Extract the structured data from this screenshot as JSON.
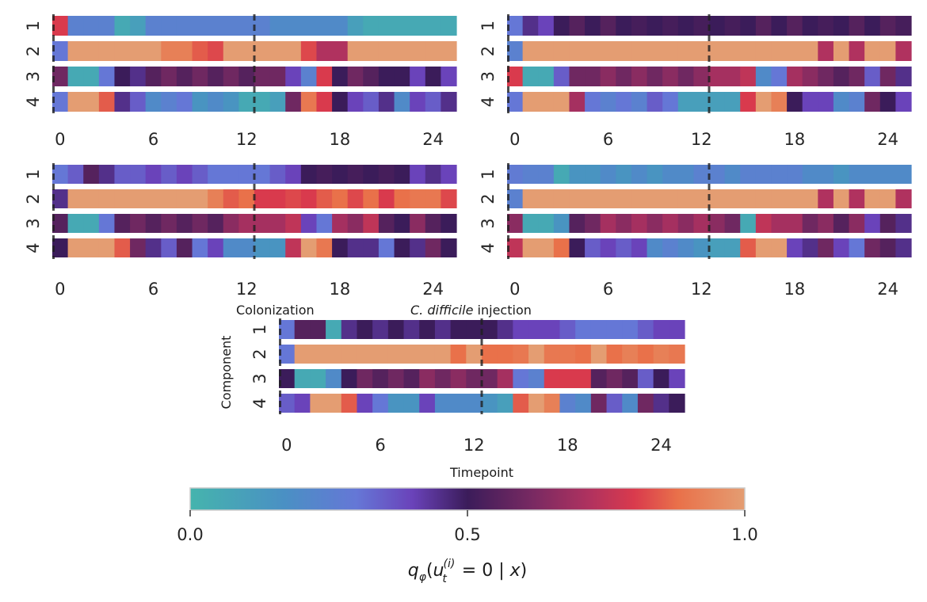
{
  "chart_data": {
    "type": "heatmap",
    "shared": {
      "x_ticks": [
        "0",
        "6",
        "12",
        "18",
        "24"
      ],
      "x_tick_values": [
        0,
        6,
        12,
        18,
        24
      ],
      "xlim": [
        -0.5,
        25.5
      ],
      "event_lines_x": [
        -0.5,
        12.5
      ],
      "rows": [
        "1",
        "2",
        "3",
        "4"
      ],
      "n_timepoints": 26
    },
    "colorbar": {
      "ticks": [
        "0.0",
        "0.5",
        "1.0"
      ],
      "tick_values": [
        0.0,
        0.5,
        1.0
      ],
      "range": [
        0,
        1
      ],
      "label_prefix": "q",
      "label_sub": "φ",
      "label_u": "u",
      "label_u_sub": "t",
      "label_u_sup": "(i)",
      "label_rest": " = 0 | ",
      "label_x": "x",
      "label_close": ")",
      "label_open": "(",
      "stops": [
        {
          "v": 0.0,
          "c": "#45b4ad"
        },
        {
          "v": 0.17,
          "c": "#4a90c4"
        },
        {
          "v": 0.3,
          "c": "#6577d6"
        },
        {
          "v": 0.4,
          "c": "#6a43ba"
        },
        {
          "v": 0.5,
          "c": "#3b1c5a"
        },
        {
          "v": 0.62,
          "c": "#7a2a62"
        },
        {
          "v": 0.72,
          "c": "#b0325f"
        },
        {
          "v": 0.8,
          "c": "#d93a4d"
        },
        {
          "v": 0.88,
          "c": "#e9714a"
        },
        {
          "v": 1.0,
          "c": "#e49d72"
        }
      ]
    },
    "annotations": {
      "left": "Colonization",
      "right_italic": "C.  difficile",
      "right_plain": " injection",
      "ylabel": "Component",
      "xlabel": "Timepoint"
    },
    "panels": [
      {
        "id": "panel-1",
        "values": [
          [
            0.8,
            0.25,
            0.25,
            0.25,
            0.05,
            0.1,
            0.25,
            0.25,
            0.25,
            0.25,
            0.25,
            0.25,
            0.25,
            0.25,
            0.2,
            0.2,
            0.2,
            0.2,
            0.2,
            0.1,
            0.05,
            0.05,
            0.05,
            0.05,
            0.05,
            0.05
          ],
          [
            0.3,
            1.0,
            1.0,
            1.0,
            1.0,
            1.0,
            1.0,
            0.92,
            0.92,
            0.85,
            0.82,
            1.0,
            1.0,
            1.0,
            1.0,
            1.0,
            0.82,
            0.72,
            0.72,
            1.0,
            1.0,
            1.0,
            1.0,
            1.0,
            1.0,
            1.0
          ],
          [
            0.6,
            0.05,
            0.05,
            0.3,
            0.5,
            0.45,
            0.55,
            0.6,
            0.55,
            0.6,
            0.55,
            0.6,
            0.55,
            0.6,
            0.6,
            0.4,
            0.25,
            0.8,
            0.5,
            0.6,
            0.55,
            0.5,
            0.5,
            0.4,
            0.5,
            0.4
          ],
          [
            0.3,
            1.0,
            1.0,
            0.85,
            0.45,
            0.35,
            0.2,
            0.25,
            0.3,
            0.15,
            0.2,
            0.15,
            0.05,
            0.05,
            0.1,
            0.6,
            0.9,
            0.8,
            0.5,
            0.4,
            0.35,
            0.45,
            0.2,
            0.4,
            0.35,
            0.45
          ]
        ]
      },
      {
        "id": "panel-2",
        "values": [
          [
            0.3,
            0.45,
            0.4,
            0.5,
            0.55,
            0.5,
            0.55,
            0.5,
            0.52,
            0.5,
            0.52,
            0.5,
            0.52,
            0.5,
            0.52,
            0.5,
            0.55,
            0.5,
            0.55,
            0.5,
            0.52,
            0.5,
            0.55,
            0.5,
            0.55,
            0.52
          ],
          [
            0.25,
            1.0,
            1.0,
            1.0,
            1.0,
            1.0,
            1.0,
            1.0,
            1.0,
            1.0,
            1.0,
            1.0,
            1.0,
            1.0,
            1.0,
            1.0,
            1.0,
            1.0,
            1.0,
            1.0,
            0.72,
            1.0,
            0.72,
            1.0,
            1.0,
            0.72
          ],
          [
            0.8,
            0.05,
            0.05,
            0.35,
            0.6,
            0.6,
            0.65,
            0.6,
            0.65,
            0.6,
            0.65,
            0.6,
            0.65,
            0.7,
            0.7,
            0.75,
            0.2,
            0.3,
            0.7,
            0.65,
            0.6,
            0.55,
            0.6,
            0.35,
            0.6,
            0.45
          ],
          [
            0.3,
            1.0,
            1.0,
            1.0,
            0.7,
            0.3,
            0.25,
            0.3,
            0.25,
            0.35,
            0.3,
            0.1,
            0.1,
            0.1,
            0.1,
            0.8,
            1.0,
            0.92,
            0.5,
            0.4,
            0.4,
            0.2,
            0.25,
            0.6,
            0.5,
            0.4
          ]
        ]
      },
      {
        "id": "panel-3",
        "values": [
          [
            0.3,
            0.35,
            0.55,
            0.45,
            0.35,
            0.35,
            0.4,
            0.35,
            0.4,
            0.35,
            0.3,
            0.3,
            0.3,
            0.3,
            0.35,
            0.4,
            0.5,
            0.52,
            0.5,
            0.52,
            0.5,
            0.52,
            0.5,
            0.4,
            0.45,
            0.4
          ],
          [
            0.45,
            1.0,
            1.0,
            1.0,
            1.0,
            1.0,
            1.0,
            1.0,
            1.0,
            1.0,
            0.92,
            0.85,
            0.88,
            0.8,
            0.8,
            0.82,
            0.8,
            0.85,
            0.88,
            0.82,
            0.88,
            0.8,
            0.88,
            0.9,
            0.9,
            0.82
          ],
          [
            0.55,
            0.05,
            0.05,
            0.3,
            0.55,
            0.6,
            0.55,
            0.6,
            0.55,
            0.6,
            0.55,
            0.65,
            0.7,
            0.7,
            0.7,
            0.75,
            0.4,
            0.3,
            0.7,
            0.65,
            0.75,
            0.55,
            0.5,
            0.65,
            0.55,
            0.5
          ],
          [
            0.5,
            1.0,
            1.0,
            1.0,
            0.85,
            0.6,
            0.45,
            0.35,
            0.55,
            0.3,
            0.4,
            0.2,
            0.2,
            0.15,
            0.15,
            0.75,
            1.0,
            0.9,
            0.5,
            0.45,
            0.45,
            0.3,
            0.5,
            0.45,
            0.6,
            0.5
          ]
        ]
      },
      {
        "id": "panel-4",
        "values": [
          [
            0.28,
            0.25,
            0.25,
            0.05,
            0.15,
            0.15,
            0.2,
            0.15,
            0.2,
            0.15,
            0.2,
            0.2,
            0.25,
            0.25,
            0.2,
            0.25,
            0.25,
            0.25,
            0.25,
            0.2,
            0.2,
            0.15,
            0.2,
            0.2,
            0.2,
            0.2
          ],
          [
            0.25,
            1.0,
            1.0,
            1.0,
            1.0,
            1.0,
            1.0,
            1.0,
            1.0,
            1.0,
            1.0,
            1.0,
            1.0,
            1.0,
            1.0,
            1.0,
            1.0,
            1.0,
            1.0,
            1.0,
            0.72,
            1.0,
            0.72,
            1.0,
            1.0,
            0.72
          ],
          [
            0.65,
            0.05,
            0.05,
            0.15,
            0.55,
            0.6,
            0.7,
            0.65,
            0.7,
            0.65,
            0.7,
            0.65,
            0.7,
            0.65,
            0.6,
            0.05,
            0.75,
            0.7,
            0.7,
            0.6,
            0.65,
            0.55,
            0.65,
            0.4,
            0.55,
            0.45
          ],
          [
            0.75,
            1.0,
            1.0,
            0.88,
            0.5,
            0.35,
            0.4,
            0.35,
            0.4,
            0.2,
            0.25,
            0.2,
            0.15,
            0.1,
            0.1,
            0.85,
            1.0,
            1.0,
            0.4,
            0.45,
            0.6,
            0.4,
            0.3,
            0.6,
            0.55,
            0.45
          ]
        ]
      },
      {
        "id": "panel-5",
        "values": [
          [
            0.3,
            0.55,
            0.55,
            0.05,
            0.45,
            0.5,
            0.45,
            0.5,
            0.45,
            0.5,
            0.45,
            0.5,
            0.5,
            0.5,
            0.45,
            0.4,
            0.4,
            0.4,
            0.35,
            0.3,
            0.3,
            0.3,
            0.3,
            0.35,
            0.4,
            0.4
          ],
          [
            0.3,
            1.0,
            1.0,
            1.0,
            1.0,
            1.0,
            1.0,
            1.0,
            1.0,
            1.0,
            1.0,
            0.88,
            1.0,
            0.88,
            0.88,
            0.9,
            1.0,
            0.9,
            0.9,
            0.88,
            1.0,
            0.88,
            0.92,
            0.88,
            0.92,
            0.9
          ],
          [
            0.5,
            0.05,
            0.05,
            0.2,
            0.5,
            0.6,
            0.55,
            0.6,
            0.55,
            0.65,
            0.6,
            0.65,
            0.6,
            0.6,
            0.7,
            0.3,
            0.25,
            0.8,
            0.8,
            0.8,
            0.55,
            0.6,
            0.55,
            0.35,
            0.5,
            0.4
          ],
          [
            0.35,
            0.4,
            1.0,
            1.0,
            0.85,
            0.4,
            0.3,
            0.15,
            0.15,
            0.4,
            0.2,
            0.2,
            0.2,
            0.15,
            0.1,
            0.85,
            1.0,
            0.92,
            0.25,
            0.2,
            0.6,
            0.35,
            0.2,
            0.6,
            0.45,
            0.5
          ]
        ]
      }
    ]
  }
}
